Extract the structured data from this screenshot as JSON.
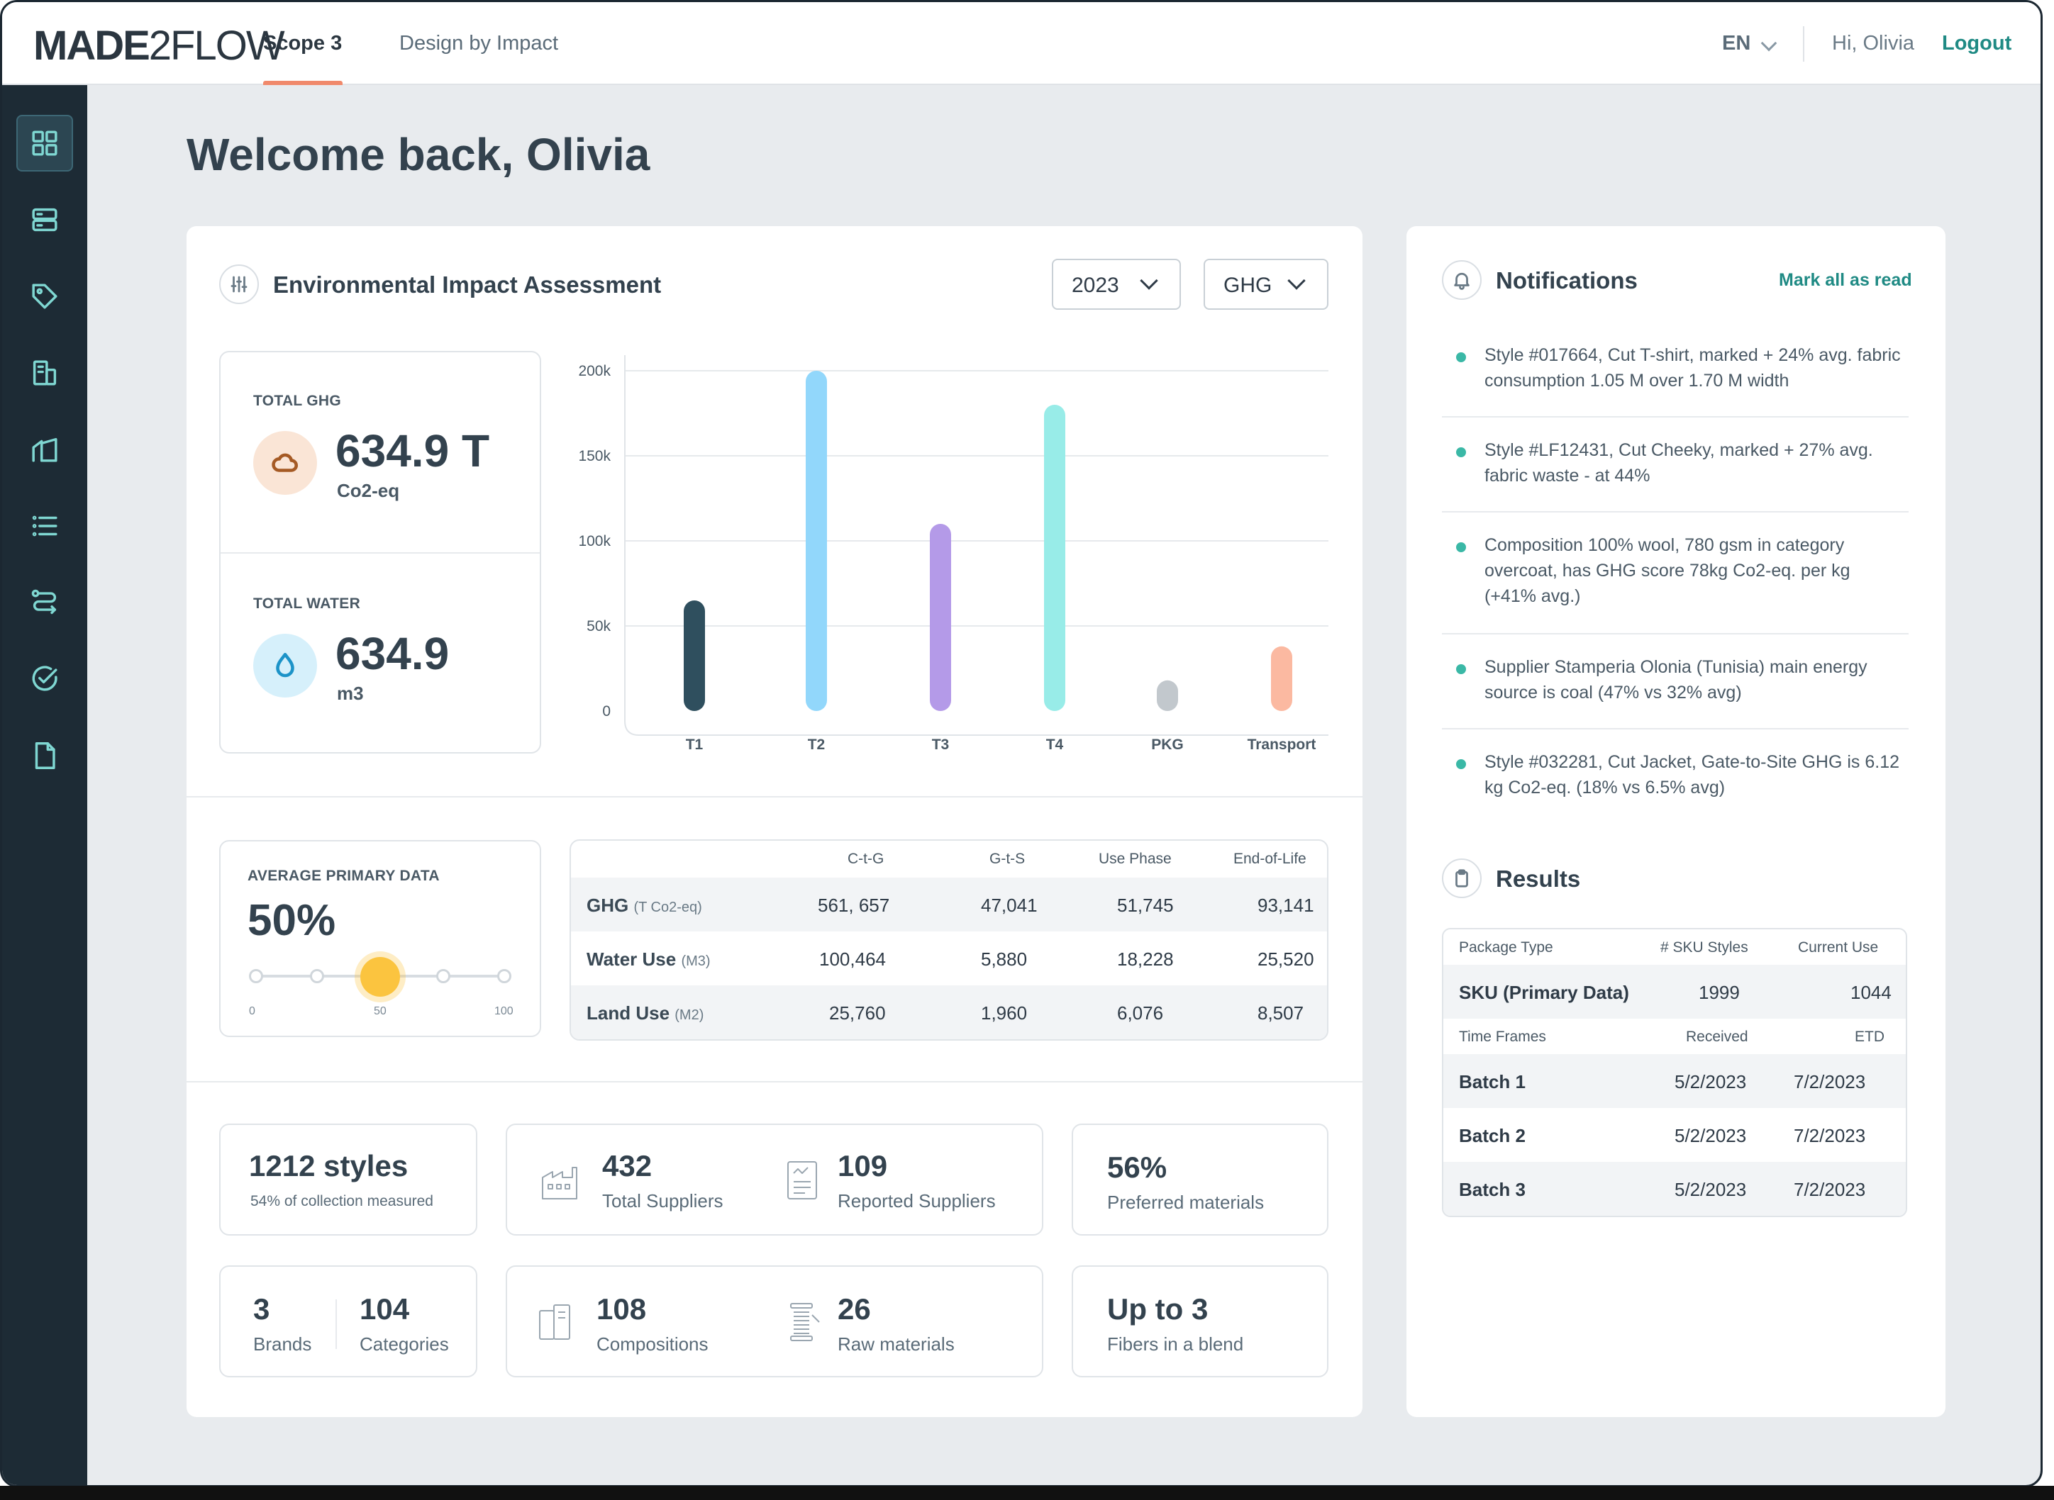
{
  "app": {
    "logo_bold": "MADE",
    "logo_light": "2FLOW",
    "tabs": [
      {
        "label": "Scope 3",
        "active": true
      },
      {
        "label": "Design by Impact",
        "active": false
      }
    ],
    "language": "EN",
    "greeting": "Hi, Olivia",
    "logout_label": "Logout",
    "accent_color": "#1f8a84",
    "tab_underline_color": "#f0896b"
  },
  "sidebar": {
    "items": [
      {
        "icon": "grid-icon",
        "active": true
      },
      {
        "icon": "server-icon"
      },
      {
        "icon": "tag-icon"
      },
      {
        "icon": "building-icon"
      },
      {
        "icon": "chart-icon"
      },
      {
        "icon": "list-icon"
      },
      {
        "icon": "route-icon"
      },
      {
        "icon": "check-circle-icon"
      },
      {
        "icon": "document-icon"
      }
    ]
  },
  "welcome": "Welcome back, Olivia",
  "assessment": {
    "title": "Environmental Impact Assessment",
    "year": "2023",
    "metric": "GHG",
    "total_ghg": {
      "label": "TOTAL GHG",
      "value": "634.9 T",
      "unit": "Co2-eq"
    },
    "total_water": {
      "label": "TOTAL WATER",
      "value": "634.9",
      "unit": "m3"
    }
  },
  "chart_data": {
    "type": "bar",
    "categories": [
      "T1",
      "T2",
      "T3",
      "T4",
      "PKG",
      "Transport"
    ],
    "values": [
      65000,
      200000,
      110000,
      180000,
      18000,
      38000
    ],
    "colors": [
      "#2f4f5e",
      "#92d7fb",
      "#b49ae8",
      "#98ece8",
      "#c2c8cd",
      "#fbb9a1"
    ],
    "y_ticks": [
      "0",
      "50k",
      "100k",
      "150k",
      "200k"
    ],
    "ylim": [
      0,
      205000
    ],
    "grid": true
  },
  "primary_data": {
    "label": "AVERAGE PRIMARY DATA",
    "value": "50%",
    "level": 0.5,
    "tick_min": "0",
    "tick_mid": "50",
    "tick_max": "100"
  },
  "impact_table": {
    "headers": [
      "",
      "C-t-G",
      "G-t-S",
      "Use Phase",
      "End-of-Life"
    ],
    "rows": [
      {
        "label": "GHG",
        "unit": "(T Co2-eq)",
        "values": [
          "561, 657",
          "47,041",
          "51,745",
          "93,141"
        ]
      },
      {
        "label": "Water Use",
        "unit": "(M3)",
        "values": [
          "100,464",
          "5,880",
          "18,228",
          "25,520"
        ]
      },
      {
        "label": "Land Use",
        "unit": "(M2)",
        "values": [
          "25,760",
          "1,960",
          "6,076",
          "8,507"
        ]
      }
    ]
  },
  "stats": {
    "styles": {
      "value": "1212 styles",
      "sub": "54% of collection measured"
    },
    "total_suppliers": {
      "value": "432",
      "label": "Total Suppliers"
    },
    "reported_suppliers": {
      "value": "109",
      "label": "Reported Suppliers"
    },
    "preferred": {
      "value": "56%",
      "label": "Preferred materials"
    },
    "brands": {
      "value": "3",
      "label": "Brands"
    },
    "categories": {
      "value": "104",
      "label": "Categories"
    },
    "compositions": {
      "value": "108",
      "label": "Compositions"
    },
    "raw_materials": {
      "value": "26",
      "label": "Raw materials"
    },
    "fibers": {
      "value": "Up to 3",
      "label": "Fibers in a blend"
    }
  },
  "notifications": {
    "title": "Notifications",
    "mark_all_label": "Mark all as read",
    "items": [
      "Style #017664, Cut T-shirt, marked + 24% avg. fabric consumption 1.05 M over 1.70 M width",
      "Style #LF12431, Cut Cheeky, marked + 27% avg. fabric waste - at 44%",
      "Composition 100% wool, 780 gsm in category overcoat, has GHG score 78kg Co2-eq. per kg (+41% avg.)",
      "Supplier Stamperia Olonia (Tunisia) main energy source is coal (47% vs 32% avg)",
      "Style #032281, Cut Jacket, Gate-to-Site GHG is 6.12 kg Co2-eq. (18% vs 6.5% avg)"
    ]
  },
  "results": {
    "title": "Results",
    "package_headers": [
      "Package Type",
      "# SKU Styles",
      "Current Use"
    ],
    "package_row": [
      "SKU (Primary Data)",
      "1999",
      "1044"
    ],
    "time_headers": [
      "Time Frames",
      "Received",
      "ETD"
    ],
    "batches": [
      [
        "Batch 1",
        "5/2/2023",
        "7/2/2023"
      ],
      [
        "Batch 2",
        "5/2/2023",
        "7/2/2023"
      ],
      [
        "Batch 3",
        "5/2/2023",
        "7/2/2023"
      ]
    ]
  }
}
